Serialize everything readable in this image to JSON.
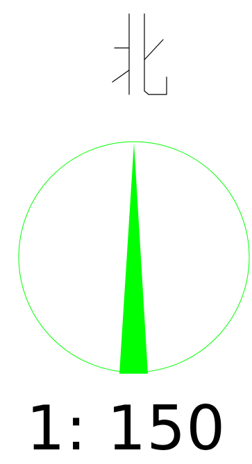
{
  "north_symbol": {
    "glyph": "北",
    "color": "#000000"
  },
  "compass": {
    "ring_color": "#00ff00",
    "needle_color": "#00ff00"
  },
  "scale": {
    "text": "1: 150",
    "color": "#000000"
  }
}
